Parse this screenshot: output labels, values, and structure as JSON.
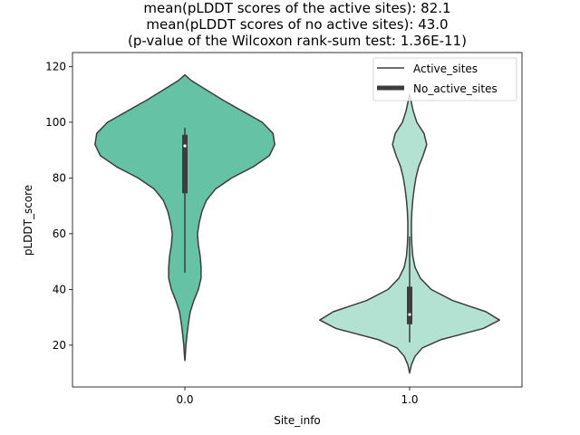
{
  "chart_data": {
    "type": "violin",
    "title_lines": [
      "mean(pLDDT scores of the active sites): 82.1",
      "mean(pLDDT scores of no active sites): 43.0",
      "(p-value of the Wilcoxon rank-sum test: 1.36E-11)"
    ],
    "xlabel": "Site_info",
    "ylabel": "pLDDT_score",
    "categories": [
      "0.0",
      "1.0"
    ],
    "ylim": [
      5,
      125
    ],
    "yticks": [
      20,
      40,
      60,
      80,
      100,
      120
    ],
    "grid": false,
    "legend_position": "top-right",
    "legend": [
      {
        "label": "Active_sites",
        "style": "line"
      },
      {
        "label": "No_active_sites",
        "style": "thick-line"
      }
    ],
    "violins": [
      {
        "category": "0.0",
        "color": "#66c2a5",
        "median": 91.5,
        "q1": 74.5,
        "q3": 95.5,
        "whisker_low": 46,
        "whisker_high": 98,
        "min": 14.5,
        "max": 117,
        "profile": [
          [
            117,
            0.0
          ],
          [
            115,
            0.07
          ],
          [
            112,
            0.22
          ],
          [
            108,
            0.42
          ],
          [
            104,
            0.64
          ],
          [
            100,
            0.86
          ],
          [
            96,
            0.98
          ],
          [
            92,
            1.0
          ],
          [
            88,
            0.94
          ],
          [
            84,
            0.76
          ],
          [
            80,
            0.52
          ],
          [
            76,
            0.34
          ],
          [
            72,
            0.24
          ],
          [
            68,
            0.19
          ],
          [
            64,
            0.16
          ],
          [
            60,
            0.14
          ],
          [
            56,
            0.15
          ],
          [
            52,
            0.17
          ],
          [
            48,
            0.18
          ],
          [
            44,
            0.18
          ],
          [
            40,
            0.15
          ],
          [
            36,
            0.1
          ],
          [
            32,
            0.06
          ],
          [
            28,
            0.04
          ],
          [
            24,
            0.025
          ],
          [
            20,
            0.012
          ],
          [
            16,
            0.004
          ],
          [
            14.5,
            0.0
          ]
        ]
      },
      {
        "category": "1.0",
        "color": "#b3e2d3",
        "median": 31,
        "q1": 27.5,
        "q3": 41,
        "whisker_low": 21,
        "whisker_high": 59,
        "min": 10,
        "max": 110,
        "profile": [
          [
            110,
            0.0
          ],
          [
            107,
            0.02
          ],
          [
            104,
            0.04
          ],
          [
            100,
            0.08
          ],
          [
            96,
            0.16
          ],
          [
            92,
            0.19
          ],
          [
            88,
            0.15
          ],
          [
            84,
            0.1
          ],
          [
            80,
            0.07
          ],
          [
            76,
            0.05
          ],
          [
            72,
            0.035
          ],
          [
            68,
            0.025
          ],
          [
            64,
            0.02
          ],
          [
            60,
            0.02
          ],
          [
            56,
            0.025
          ],
          [
            52,
            0.035
          ],
          [
            48,
            0.06
          ],
          [
            44,
            0.12
          ],
          [
            40,
            0.24
          ],
          [
            36,
            0.48
          ],
          [
            32,
            0.85
          ],
          [
            29,
            1.0
          ],
          [
            26,
            0.82
          ],
          [
            22,
            0.35
          ],
          [
            19,
            0.14
          ],
          [
            16,
            0.06
          ],
          [
            13,
            0.02
          ],
          [
            10,
            0.0
          ]
        ]
      }
    ]
  }
}
